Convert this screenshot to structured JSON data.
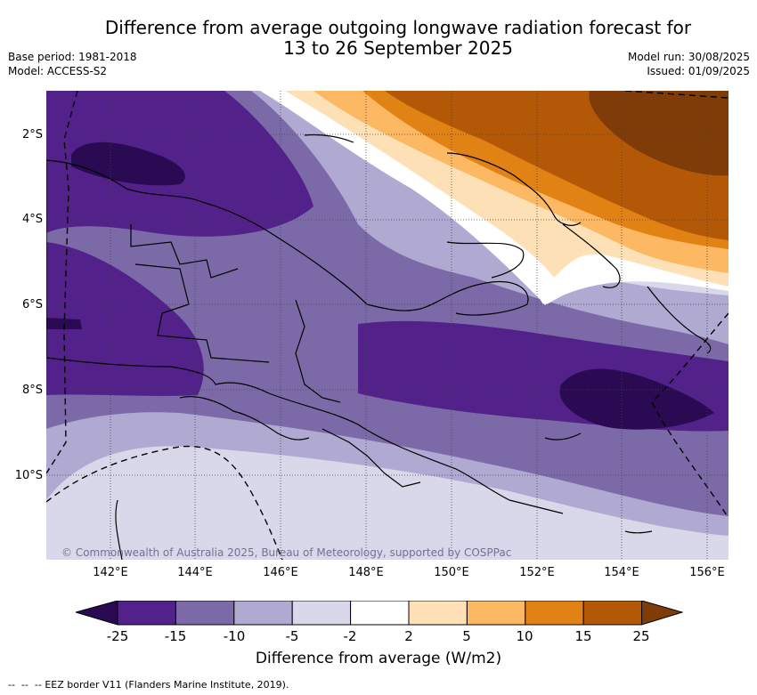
{
  "title": {
    "line1": "Difference from average outgoing longwave radiation forecast for",
    "line2": "13 to 26 September 2025"
  },
  "meta_left": {
    "base_period": "Base period: 1981-2018",
    "model": "Model: ACCESS-S2"
  },
  "meta_right": {
    "model_run": "Model run: 30/08/2025",
    "issued": "Issued: 01/09/2025"
  },
  "map": {
    "lat_labels": [
      "2°S",
      "4°S",
      "6°S",
      "8°S",
      "10°S"
    ],
    "lon_labels": [
      "142°E",
      "144°E",
      "146°E",
      "148°E",
      "150°E",
      "152°E",
      "154°E",
      "156°E"
    ],
    "copyright": "© Commonwealth of Australia 2025, Bureau of Meteorology, supported by COSPPac"
  },
  "colorbar": {
    "ticks": [
      "-25",
      "-15",
      "-10",
      "-5",
      "-2",
      "2",
      "5",
      "10",
      "15",
      "25"
    ],
    "colors": [
      "#2b0a54",
      "#52228a",
      "#7c6aa8",
      "#b0a9d2",
      "#d9d8ea",
      "#ffffff",
      "#fee0b6",
      "#fdb863",
      "#e08214",
      "#b35806",
      "#7f3b08"
    ],
    "title": "Difference from average (W/m2)"
  },
  "legend": {
    "eez": "EEZ border V11 (Flanders Marine Institute, 2019)."
  }
}
